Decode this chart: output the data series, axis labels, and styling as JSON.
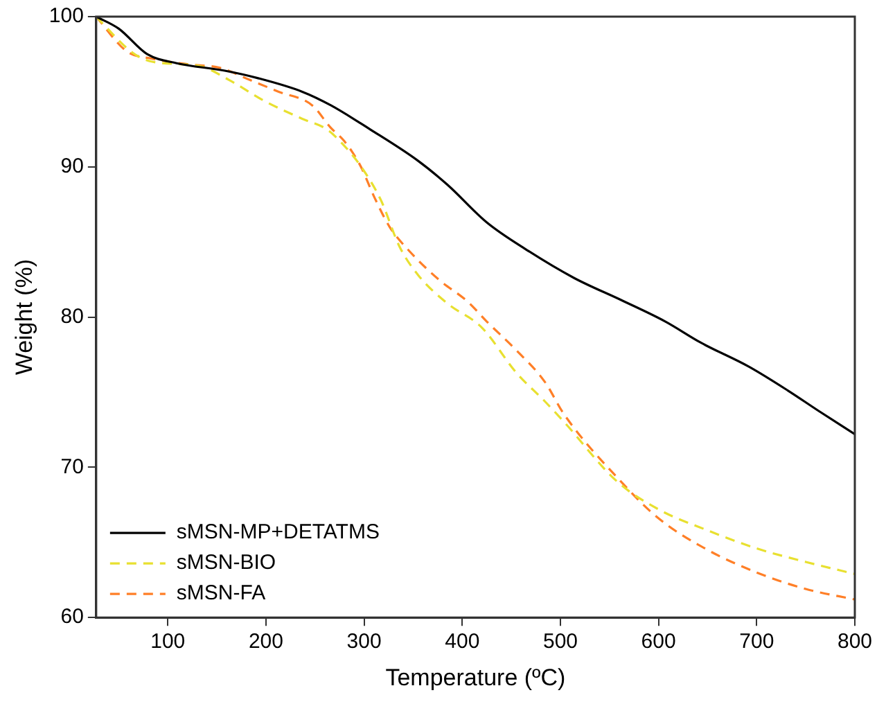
{
  "chart_data": {
    "type": "line",
    "xlabel": "Temperature (ºC)",
    "ylabel": "Weight (%)",
    "xlim": [
      27,
      800
    ],
    "ylim": [
      60,
      100
    ],
    "xticks": [
      100,
      200,
      300,
      400,
      500,
      600,
      700,
      800
    ],
    "yticks": [
      60,
      70,
      80,
      90,
      100
    ],
    "grid": false,
    "legend": "bottom left",
    "marker": "none",
    "series": [
      {
        "name": "sMSN-MP+DETATMS",
        "color": "#000000",
        "line_style": "solid",
        "x": [
          27,
          50,
          79,
          109,
          158,
          192,
          237,
          266,
          306,
          355,
          385,
          425,
          465,
          514,
          563,
          607,
          643,
          692,
          732,
          762,
          800
        ],
        "values": [
          100,
          99.2,
          97.5,
          96.9,
          96.4,
          95.9,
          95,
          94.1,
          92.5,
          90.4,
          88.8,
          86.3,
          84.5,
          82.6,
          81.1,
          79.7,
          78.3,
          76.7,
          75.1,
          73.8,
          72.2
        ]
      },
      {
        "name": "sMSN-BIO",
        "color": "#e8e030",
        "line_style": "dashed",
        "x": [
          27,
          64,
          84,
          133,
          162,
          198,
          237,
          262,
          277,
          296,
          317,
          336,
          355,
          385,
          420,
          455,
          484,
          504,
          557,
          600,
          650,
          700,
          750,
          800
        ],
        "values": [
          100,
          97.6,
          97,
          96.7,
          95.8,
          94.4,
          93.2,
          92.5,
          91.6,
          90.1,
          87.8,
          84.7,
          82.8,
          80.9,
          79.3,
          76.3,
          74.4,
          73,
          69.1,
          67.2,
          65.8,
          64.6,
          63.7,
          62.9
        ]
      },
      {
        "name": "sMSN-FA",
        "color": "#ff7f27",
        "line_style": "dashed",
        "x": [
          27,
          58,
          84,
          124,
          153,
          183,
          213,
          247,
          266,
          280,
          296,
          311,
          326,
          346,
          376,
          406,
          425,
          455,
          484,
          504,
          561,
          600,
          650,
          700,
          750,
          800
        ],
        "values": [
          100,
          97.7,
          97.2,
          96.8,
          96.6,
          95.8,
          95,
          94.1,
          92.6,
          91.7,
          90.1,
          87.9,
          86,
          84.4,
          82.5,
          81,
          79.7,
          77.8,
          75.7,
          73.5,
          69.1,
          66.6,
          64.5,
          63,
          61.9,
          61.2
        ]
      }
    ]
  }
}
